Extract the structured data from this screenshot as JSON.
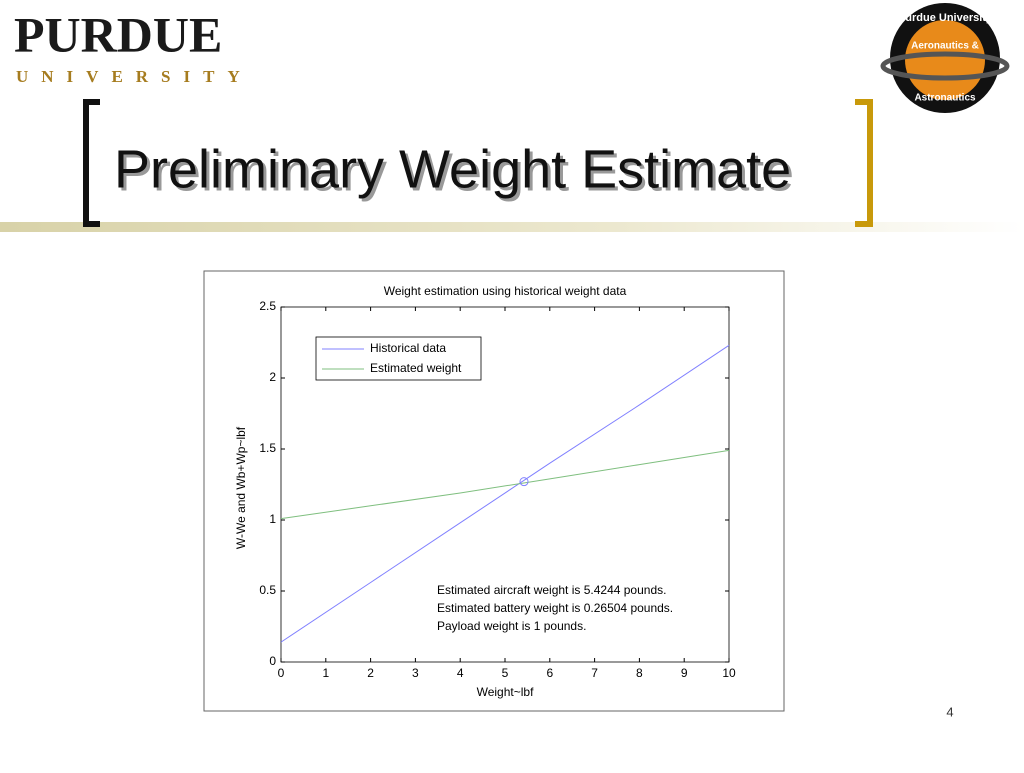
{
  "slide": {
    "logo": "PURDUE",
    "logo_sub": "UNIVERSITY",
    "badge_top": "Purdue University",
    "badge_mid": "Aeronautics &",
    "badge_bottom": "Astronautics",
    "title": "Preliminary Weight Estimate",
    "page_number": "4"
  },
  "chart_data": {
    "type": "line",
    "title": "Weight estimation using historical weight data",
    "x_label": "Weight~lbf",
    "y_label": "W-We and Wb+Wp~lbf",
    "x": [
      0,
      2,
      4,
      6,
      8,
      10
    ],
    "series": [
      {
        "name": "Historical data",
        "color": "#8080ff",
        "values": [
          0.14,
          0.56,
          0.98,
          1.4,
          1.81,
          2.23
        ]
      },
      {
        "name": "Estimated weight",
        "color": "#7fbf7f",
        "values": [
          1.01,
          1.1,
          1.19,
          1.29,
          1.39,
          1.49
        ]
      }
    ],
    "intersection": {
      "x": 5.4244,
      "y": 1.27,
      "color": "#8080ff"
    },
    "annotations": [
      "Estimated aircraft weight is 5.4244 pounds.",
      "Estimated battery weight is 0.26504 pounds.",
      "Payload weight is 1 pounds."
    ],
    "xlim": [
      0,
      10
    ],
    "xticks": [
      0,
      1,
      2,
      3,
      4,
      5,
      6,
      7,
      8,
      9,
      10
    ],
    "ylim": [
      0,
      2.5
    ],
    "yticks": [
      0,
      0.5,
      1,
      1.5,
      2,
      2.5
    ],
    "grid": false,
    "legend": "top-left"
  }
}
